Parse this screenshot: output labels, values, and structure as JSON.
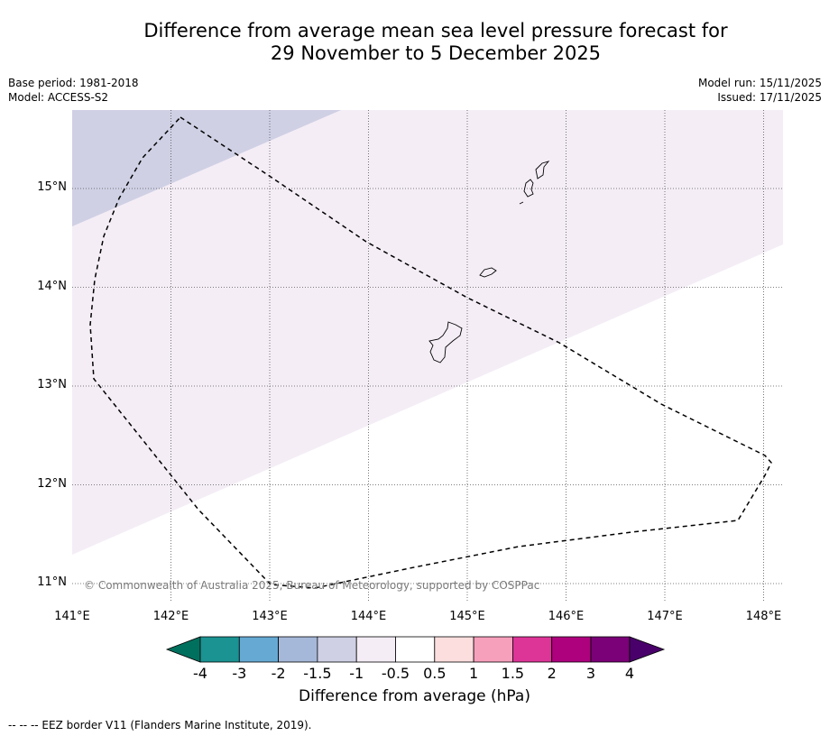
{
  "title": {
    "line1": "Difference from average mean sea level pressure forecast for",
    "line2": "29 November to 5 December 2025"
  },
  "meta": {
    "base_period": "Base period: 1981-2018",
    "model": "Model: ACCESS-S2",
    "model_run": "Model run: 15/11/2025",
    "issued": "Issued: 17/11/2025"
  },
  "map": {
    "lon_labels": [
      "141°E",
      "142°E",
      "143°E",
      "144°E",
      "145°E",
      "146°E",
      "147°E",
      "148°E"
    ],
    "lat_labels": [
      "15°N",
      "14°N",
      "13°N",
      "12°N",
      "11°N"
    ],
    "copyright": "© Commonwealth of Australia 2025, Bureau of Meteorology, supported by COSPPac",
    "zones": [
      {
        "range": "-1.5 to -1",
        "color": "#cfd0e4"
      },
      {
        "range": "-1 to -0.5",
        "color": "#f4edf6"
      },
      {
        "range": "-0.5 to 0.5",
        "color": "#ffffff"
      }
    ]
  },
  "colorbar": {
    "ticks": [
      "-4",
      "-3",
      "-2",
      "-1.5",
      "-1",
      "-0.5",
      "0.5",
      "1",
      "1.5",
      "2",
      "3",
      "4"
    ],
    "colors": [
      "#00705e",
      "#1a9392",
      "#66aad4",
      "#a6b8d9",
      "#cfd0e4",
      "#f4edf6",
      "#ffffff",
      "#fddede",
      "#f7a0bc",
      "#dd3497",
      "#ae017e",
      "#7a0177",
      "#49006a"
    ],
    "label": "Difference from average (hPa)"
  },
  "footer": "--  --  -- EEZ border V11 (Flanders Marine Institute, 2019)."
}
